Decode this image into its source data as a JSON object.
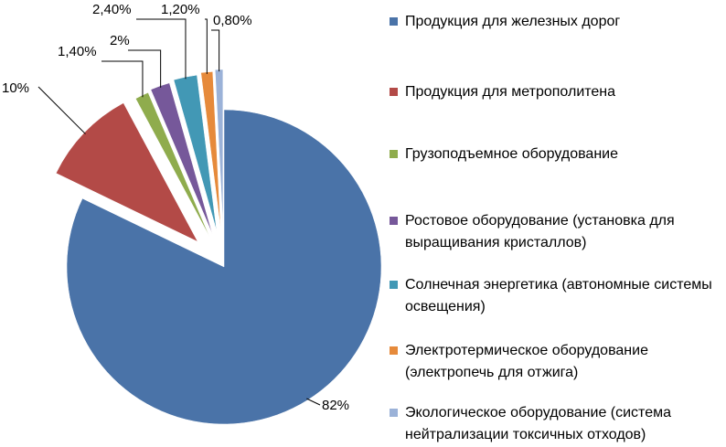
{
  "chart_data": {
    "type": "pie",
    "exploded": true,
    "series": [
      {
        "name": "Продукция для железных дорог",
        "value": 82,
        "label": "82%",
        "color": "#4a73a8"
      },
      {
        "name": "Продукция для метрополитена",
        "value": 10,
        "label": "10%",
        "color": "#b34a47"
      },
      {
        "name": "Грузоподъемное оборудование",
        "value": 1.4,
        "label": "1,40%",
        "color": "#8fac4d"
      },
      {
        "name": "Ростовое оборудование (установка для выращивания кристаллов)",
        "value": 2,
        "label": "2%",
        "color": "#76589a"
      },
      {
        "name": "Солнечная энергетика (автономные системы освещения)",
        "value": 2.4,
        "label": "2,40%",
        "color": "#4298b5"
      },
      {
        "name": "Электротермическое оборудование (электропечь для отжига)",
        "value": 1.2,
        "label": "1,20%",
        "color": "#e68a3b"
      },
      {
        "name": "Экологическое оборудование (система нейтрализации токсичных отходов)",
        "value": 0.8,
        "label": "0,80%",
        "color": "#9bb2d8"
      }
    ],
    "legend_position": "right"
  }
}
